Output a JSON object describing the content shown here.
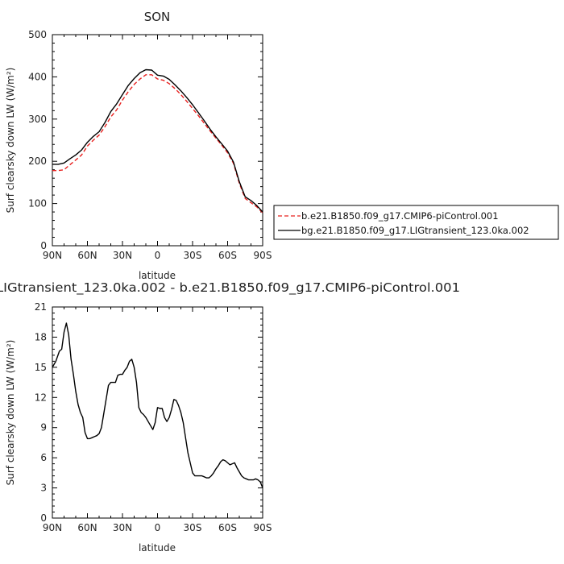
{
  "chart_data": [
    {
      "type": "line",
      "title": "SON",
      "xlabel": "latitude",
      "ylabel": "Surf clearsky down LW (W/m²)",
      "xlim": [
        90,
        -90
      ],
      "ylim": [
        0,
        500
      ],
      "xticks": [
        90,
        60,
        30,
        0,
        -30,
        -60,
        -90
      ],
      "xticklabels": [
        "90N",
        "60N",
        "30N",
        "0",
        "30S",
        "60S",
        "90S"
      ],
      "yticks": [
        0,
        100,
        200,
        300,
        400,
        500
      ],
      "yticklabels": [
        "0",
        "100",
        "200",
        "300",
        "400",
        "500"
      ],
      "legend_position": "right",
      "series": [
        {
          "name": "b.e21.B1850.f09_g17.CMIP6-piControl.001",
          "color": "#e8201e",
          "dash": "dashed",
          "x": [
            90,
            85,
            80,
            75,
            70,
            65,
            60,
            55,
            50,
            45,
            40,
            35,
            30,
            25,
            20,
            15,
            10,
            5,
            0,
            -5,
            -10,
            -15,
            -20,
            -25,
            -30,
            -35,
            -40,
            -45,
            -50,
            -55,
            -60,
            -65,
            -70,
            -75,
            -80,
            -85,
            -90
          ],
          "y": [
            178,
            178,
            180,
            192,
            203,
            215,
            236,
            250,
            262,
            282,
            305,
            322,
            345,
            365,
            382,
            395,
            405,
            405,
            395,
            392,
            384,
            372,
            358,
            342,
            325,
            308,
            290,
            272,
            255,
            238,
            220,
            195,
            148,
            112,
            102,
            92,
            78
          ]
        },
        {
          "name": "bg.e21.B1850.f09_g17.LIGtransient_123.0ka.002",
          "color": "#000000",
          "dash": "solid",
          "x": [
            90,
            85,
            80,
            75,
            70,
            65,
            60,
            55,
            50,
            45,
            40,
            35,
            30,
            25,
            20,
            15,
            10,
            5,
            0,
            -5,
            -10,
            -15,
            -20,
            -25,
            -30,
            -35,
            -40,
            -45,
            -50,
            -55,
            -60,
            -65,
            -70,
            -75,
            -80,
            -85,
            -90
          ],
          "y": [
            193,
            193,
            196,
            206,
            215,
            227,
            245,
            259,
            270,
            292,
            318,
            336,
            358,
            380,
            396,
            410,
            417,
            416,
            404,
            402,
            394,
            381,
            367,
            351,
            334,
            315,
            296,
            276,
            258,
            241,
            224,
            198,
            152,
            116,
            107,
            95,
            80
          ]
        }
      ]
    },
    {
      "type": "line",
      "title": "LIGtransient_123.0ka.002 - b.e21.B1850.f09_g17.CMIP6-piControl.001",
      "xlabel": "latitude",
      "ylabel": "Surf clearsky down LW (W/m²)",
      "xlim": [
        90,
        -90
      ],
      "ylim": [
        0,
        21
      ],
      "xticks": [
        90,
        60,
        30,
        0,
        -30,
        -60,
        -90
      ],
      "xticklabels": [
        "90N",
        "60N",
        "30N",
        "0",
        "30S",
        "60S",
        "90S"
      ],
      "yticks": [
        0,
        3,
        6,
        9,
        12,
        15,
        18,
        21
      ],
      "yticklabels": [
        "0",
        "3",
        "6",
        "9",
        "12",
        "15",
        "18",
        "21"
      ],
      "series": [
        {
          "color": "#000000",
          "x": [
            90,
            87,
            84,
            82,
            80,
            78,
            76,
            74,
            72,
            70,
            68,
            66,
            64,
            62,
            60,
            58,
            56,
            54,
            52,
            50,
            48,
            46,
            44,
            42,
            40,
            38,
            36,
            34,
            32,
            30,
            28,
            26,
            24,
            22,
            20,
            18,
            16,
            14,
            12,
            10,
            8,
            6,
            4,
            2,
            0,
            -2,
            -4,
            -6,
            -8,
            -10,
            -12,
            -14,
            -16,
            -18,
            -20,
            -22,
            -24,
            -26,
            -28,
            -30,
            -32,
            -34,
            -36,
            -38,
            -40,
            -42,
            -44,
            -46,
            -48,
            -50,
            -52,
            -54,
            -56,
            -58,
            -60,
            -62,
            -64,
            -66,
            -68,
            -70,
            -72,
            -74,
            -76,
            -78,
            -80,
            -82,
            -84,
            -86,
            -88,
            -90
          ],
          "y": [
            15.0,
            15.6,
            16.6,
            16.8,
            18.5,
            19.4,
            18.2,
            15.8,
            14.3,
            12.6,
            11.3,
            10.5,
            10.0,
            8.5,
            7.9,
            7.9,
            8.0,
            8.1,
            8.2,
            8.4,
            9.0,
            10.4,
            11.8,
            13.2,
            13.5,
            13.5,
            13.5,
            14.2,
            14.3,
            14.3,
            14.7,
            15.0,
            15.6,
            15.8,
            15.0,
            13.5,
            11.0,
            10.5,
            10.3,
            10.0,
            9.6,
            9.2,
            8.8,
            9.5,
            11.0,
            10.9,
            10.9,
            10.0,
            9.6,
            10.0,
            10.8,
            11.8,
            11.7,
            11.2,
            10.5,
            9.5,
            8.0,
            6.5,
            5.5,
            4.5,
            4.2,
            4.2,
            4.2,
            4.2,
            4.1,
            4.0,
            4.0,
            4.2,
            4.5,
            4.9,
            5.2,
            5.6,
            5.8,
            5.7,
            5.5,
            5.3,
            5.4,
            5.5,
            5.0,
            4.6,
            4.2,
            4.0,
            3.9,
            3.8,
            3.8,
            3.8,
            3.9,
            3.8,
            3.6,
            3.0
          ]
        }
      ]
    }
  ]
}
